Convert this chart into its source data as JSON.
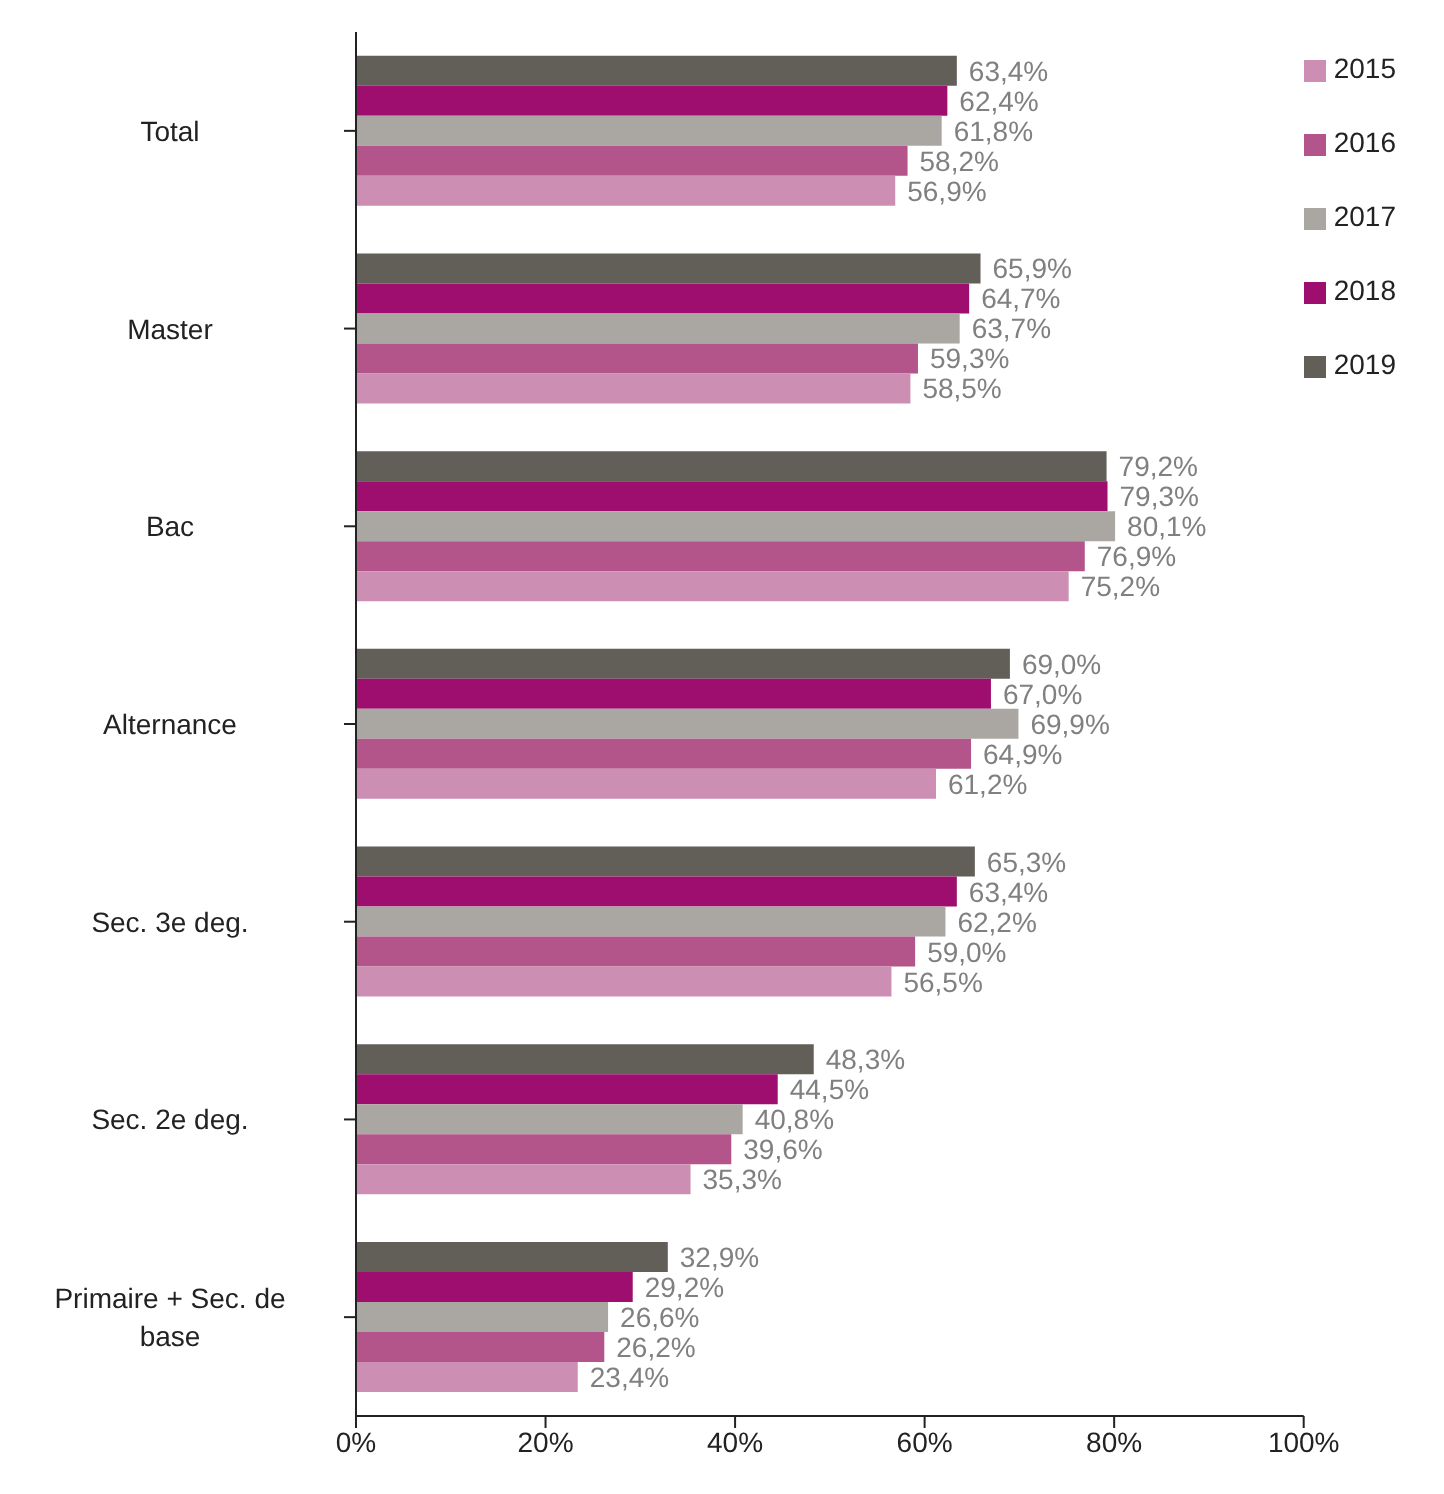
{
  "chart_data": {
    "type": "bar",
    "orientation": "horizontal",
    "categories": [
      "Total",
      "Master",
      "Bac",
      "Alternance",
      "Sec. 3e deg.",
      "Sec. 2e deg.",
      "Primaire + Sec. de base"
    ],
    "series": [
      {
        "name": "2019",
        "color": "#625e58",
        "values": [
          63.4,
          65.9,
          79.2,
          69.0,
          65.3,
          48.3,
          32.9
        ],
        "value_labels": [
          "63,4%",
          "65,9%",
          "79,2%",
          "69,0%",
          "65,3%",
          "48,3%",
          "32,9%"
        ]
      },
      {
        "name": "2018",
        "color": "#9e0e6e",
        "values": [
          62.4,
          64.7,
          79.3,
          67.0,
          63.4,
          44.5,
          29.2
        ],
        "value_labels": [
          "62,4%",
          "64,7%",
          "79,3%",
          "67,0%",
          "63,4%",
          "44,5%",
          "29,2%"
        ]
      },
      {
        "name": "2017",
        "color": "#aaa6a2",
        "values": [
          61.8,
          63.7,
          80.1,
          69.9,
          62.2,
          40.8,
          26.6
        ],
        "value_labels": [
          "61,8%",
          "63,7%",
          "80,1%",
          "69,9%",
          "62,2%",
          "40,8%",
          "26,6%"
        ]
      },
      {
        "name": "2016",
        "color": "#b3558a",
        "values": [
          58.2,
          59.3,
          76.9,
          64.9,
          59.0,
          39.6,
          26.2
        ],
        "value_labels": [
          "58,2%",
          "59,3%",
          "76,9%",
          "64,9%",
          "59,0%",
          "39,6%",
          "26,2%"
        ]
      },
      {
        "name": "2015",
        "color": "#cc8fb3",
        "values": [
          56.9,
          58.5,
          75.2,
          61.2,
          56.5,
          35.3,
          23.4
        ],
        "value_labels": [
          "56,9%",
          "58,5%",
          "75,2%",
          "61,2%",
          "56,5%",
          "35,3%",
          "23,4%"
        ]
      }
    ],
    "xlim": [
      0,
      100
    ],
    "xticks": [
      {
        "value": 0,
        "label": "0%"
      },
      {
        "value": 20,
        "label": "20%"
      },
      {
        "value": 40,
        "label": "40%"
      },
      {
        "value": 60,
        "label": "60%"
      },
      {
        "value": 80,
        "label": "80%"
      },
      {
        "value": 100,
        "label": "100%"
      }
    ],
    "grid": false,
    "legend": "top right"
  }
}
